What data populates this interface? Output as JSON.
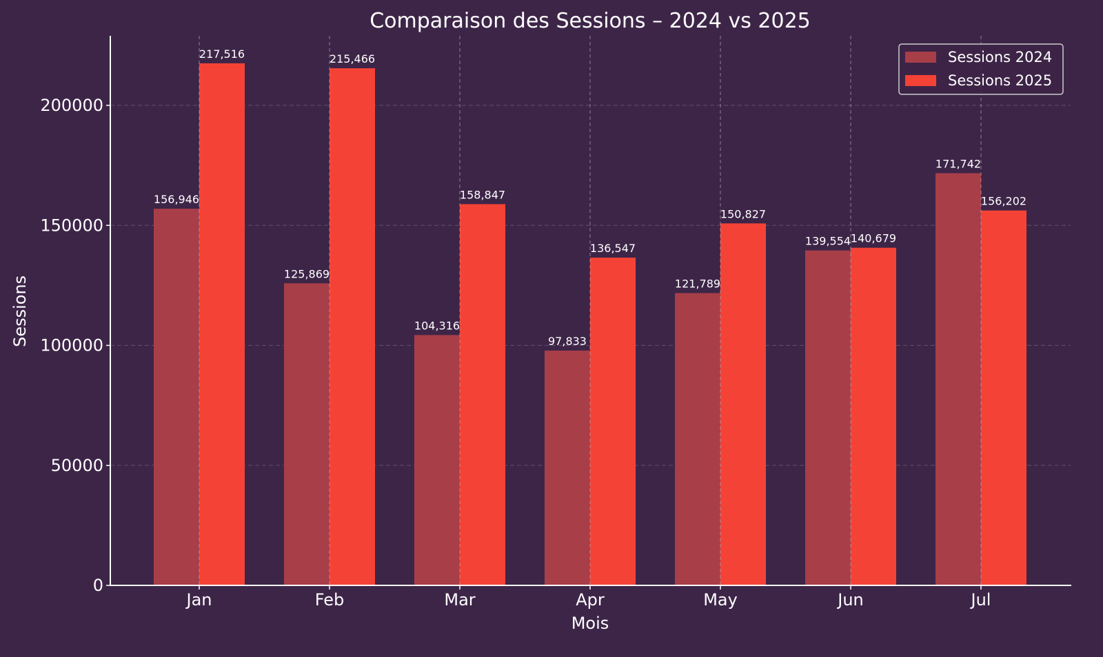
{
  "chart_data": {
    "type": "bar",
    "title": "Comparaison des Sessions – 2024 vs 2025",
    "xlabel": "Mois",
    "ylabel": "Sessions",
    "categories": [
      "Jan",
      "Feb",
      "Mar",
      "Apr",
      "May",
      "Jun",
      "Jul"
    ],
    "series": [
      {
        "name": "Sessions 2024",
        "color": "#a83e48",
        "values": [
          156946,
          125869,
          104316,
          97833,
          121789,
          139554,
          171742
        ]
      },
      {
        "name": "Sessions 2025",
        "color": "#f44336",
        "values": [
          217516,
          215466,
          158847,
          136547,
          150827,
          140679,
          156202
        ]
      }
    ],
    "data_labels": {
      "Sessions 2024": [
        "156,946",
        "125,869",
        "104,316",
        "97,833",
        "121,789",
        "139,554",
        "171,742"
      ],
      "Sessions 2025": [
        "217,516",
        "215,466",
        "158,847",
        "136,547",
        "150,827",
        "140,679",
        "156,202"
      ]
    },
    "yticks": [
      0,
      50000,
      100000,
      150000,
      200000
    ],
    "ytick_labels": [
      "0",
      "50000",
      "100000",
      "150000",
      "200000"
    ],
    "ylim": [
      0,
      229000
    ],
    "grid": true,
    "legend_position": "upper right"
  },
  "colors": {
    "background": "#3d2548",
    "axis": "#ffffff",
    "grid": "#7a6a80",
    "text": "#ffffff"
  }
}
